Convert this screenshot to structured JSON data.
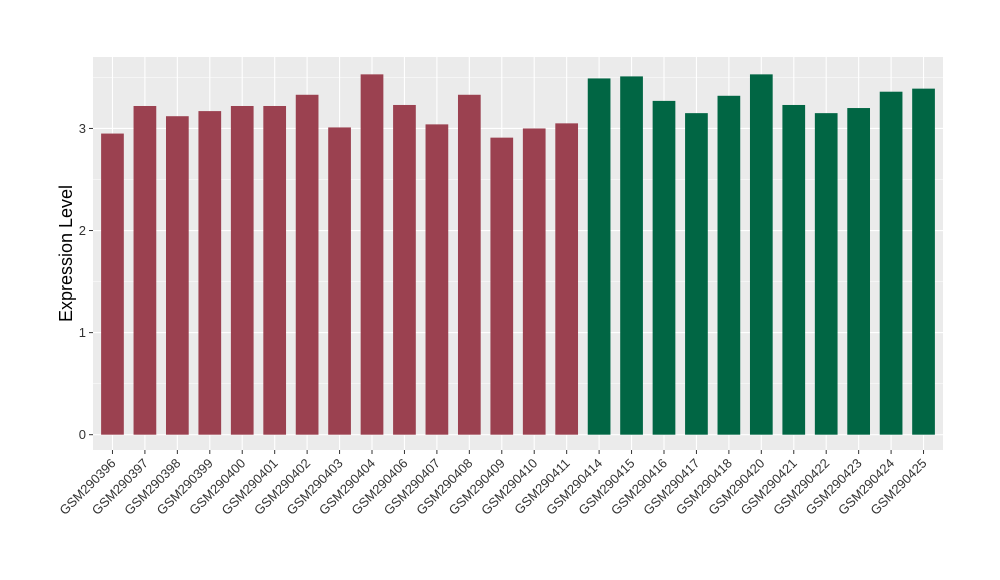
{
  "chart_data": {
    "type": "bar",
    "xlabel": "",
    "ylabel": "Expression Level",
    "ylim": [
      -0.15,
      3.7
    ],
    "yticks": [
      0,
      1,
      2,
      3
    ],
    "grid": true,
    "legend": "none",
    "categories": [
      "GSM290396",
      "GSM290397",
      "GSM290398",
      "GSM290399",
      "GSM290400",
      "GSM290401",
      "GSM290402",
      "GSM290403",
      "GSM290404",
      "GSM290406",
      "GSM290407",
      "GSM290408",
      "GSM290409",
      "GSM290410",
      "GSM290411",
      "GSM290414",
      "GSM290415",
      "GSM290416",
      "GSM290417",
      "GSM290418",
      "GSM290420",
      "GSM290421",
      "GSM290422",
      "GSM290423",
      "GSM290424",
      "GSM290425"
    ],
    "values": [
      2.95,
      3.22,
      3.12,
      3.17,
      3.22,
      3.22,
      3.33,
      3.01,
      3.53,
      3.23,
      3.04,
      3.33,
      2.91,
      3.0,
      3.05,
      3.49,
      3.51,
      3.27,
      3.15,
      3.32,
      3.53,
      3.23,
      3.15,
      3.2,
      3.36,
      3.39
    ],
    "groups": [
      0,
      0,
      0,
      0,
      0,
      0,
      0,
      0,
      0,
      0,
      0,
      0,
      0,
      0,
      0,
      1,
      1,
      1,
      1,
      1,
      1,
      1,
      1,
      1,
      1,
      1
    ],
    "colors": [
      "#9b4150",
      "#016644"
    ],
    "panel_color": "#ebebeb",
    "grid_color": "#ffffff"
  }
}
